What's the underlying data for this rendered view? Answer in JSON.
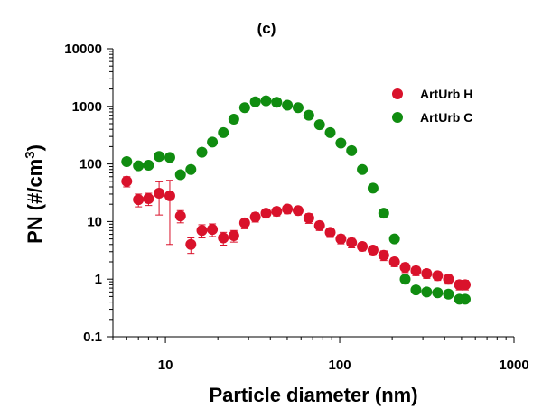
{
  "chart_data": {
    "type": "scatter",
    "title": "(c)",
    "xlabel": "Particle diameter (nm)",
    "ylabel": "PN (#/cm3)",
    "ylabel_base": "PN (#/cm",
    "ylabel_sup": "3",
    "ylabel_close": ")",
    "x_scale": "log",
    "y_scale": "log",
    "xlim": [
      5,
      1000
    ],
    "ylim": [
      0.1,
      10000
    ],
    "x_tick_labels": [
      "10",
      "100",
      "1000"
    ],
    "y_tick_labels": [
      "0.1",
      "1",
      "10",
      "100",
      "1000",
      "10000"
    ],
    "legend_position": "top-right",
    "grid": false,
    "series": [
      {
        "name": "ArtUrb H",
        "color": "#d9122b",
        "x": [
          6,
          7,
          8,
          9.2,
          10.6,
          12.2,
          14,
          16.2,
          18.6,
          21.5,
          24.7,
          28.5,
          32.8,
          37.8,
          43.5,
          50.1,
          57.7,
          66.5,
          76.6,
          88.2,
          101.6,
          117,
          134.8,
          155.3,
          178.9,
          206.1,
          237.4,
          273.8,
          315.6,
          364.4,
          420.7,
          485.8,
          525
        ],
        "y": [
          50,
          24,
          25,
          31,
          28,
          12.5,
          4,
          7,
          7.3,
          5.2,
          5.7,
          9.5,
          12,
          14,
          15,
          16.5,
          15.5,
          11.5,
          8.5,
          6.5,
          5,
          4.3,
          3.7,
          3.2,
          2.6,
          2,
          1.6,
          1.4,
          1.25,
          1.15,
          1,
          0.8,
          0.8
        ],
        "err": [
          10,
          6,
          6,
          18,
          24,
          3,
          1.2,
          1.8,
          1.8,
          1.3,
          1.3,
          2,
          2.2,
          2.5,
          2.5,
          2.8,
          2.5,
          2.2,
          1.5,
          1.2,
          0.9,
          0.8,
          0.6,
          0.5,
          0.5,
          0.35,
          0.3,
          0.25,
          0.22,
          0.2,
          0.18,
          0.15,
          0.15
        ]
      },
      {
        "name": "ArtUrb C",
        "color": "#108c10",
        "x": [
          6,
          7,
          8,
          9.2,
          10.6,
          12.2,
          14,
          16.2,
          18.6,
          21.5,
          24.7,
          28.5,
          32.8,
          37.8,
          43.5,
          50.1,
          57.7,
          66.5,
          76.6,
          88.2,
          101.6,
          117,
          134.8,
          155.3,
          178.9,
          206.1,
          237.4,
          273.8,
          315.6,
          364.4,
          420.7,
          485.8,
          525
        ],
        "y": [
          110,
          93,
          95,
          135,
          130,
          65,
          80,
          160,
          240,
          350,
          600,
          950,
          1200,
          1250,
          1180,
          1050,
          950,
          700,
          480,
          350,
          230,
          170,
          80,
          38,
          14,
          5,
          1,
          0.65,
          0.6,
          0.58,
          0.55,
          0.45,
          0.45
        ]
      }
    ]
  }
}
